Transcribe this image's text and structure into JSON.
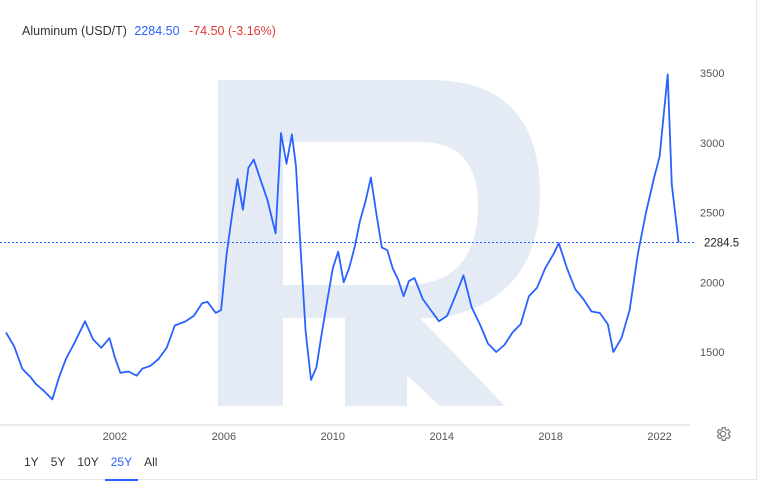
{
  "header": {
    "name": "Aluminum (USD/T)",
    "price": "2284.50",
    "change": "-74.50 (-3.16%)"
  },
  "ranges": [
    {
      "label": "1Y",
      "active": false
    },
    {
      "label": "5Y",
      "active": false
    },
    {
      "label": "10Y",
      "active": false
    },
    {
      "label": "25Y",
      "active": true
    },
    {
      "label": "All",
      "active": false
    }
  ],
  "current_label": "2284.5",
  "colors": {
    "line": "#2962ff",
    "up": "#2962ff",
    "down": "#e53935",
    "watermark": "#e5ebf5"
  },
  "icons": {
    "settings": "gear-icon",
    "watermark": "logo-r"
  },
  "chart_data": {
    "type": "line",
    "title": "",
    "xlabel": "",
    "ylabel": "",
    "xlim": [
      1998.0,
      2022.75
    ],
    "ylim": [
      1100,
      3650
    ],
    "x_ticks": [
      2002,
      2006,
      2010,
      2014,
      2018,
      2022
    ],
    "y_ticks": [
      1500,
      2000,
      2500,
      3000,
      3500
    ],
    "current_value": 2284.5,
    "grid": false,
    "series": [
      {
        "name": "",
        "x": [
          1998.0,
          1998.3,
          1998.6,
          1998.9,
          1999.1,
          1999.4,
          1999.7,
          1999.95,
          2000.2,
          2000.5,
          2000.9,
          2001.2,
          2001.5,
          2001.8,
          2002.0,
          2002.2,
          2002.5,
          2002.8,
          2003.0,
          2003.3,
          2003.6,
          2003.9,
          2004.2,
          2004.6,
          2004.9,
          2005.2,
          2005.4,
          2005.7,
          2005.9,
          2006.1,
          2006.3,
          2006.5,
          2006.7,
          2006.9,
          2007.1,
          2007.3,
          2007.6,
          2007.9,
          2008.1,
          2008.3,
          2008.5,
          2008.65,
          2008.8,
          2009.0,
          2009.2,
          2009.4,
          2009.6,
          2009.8,
          2010.0,
          2010.2,
          2010.4,
          2010.6,
          2010.8,
          2011.0,
          2011.2,
          2011.4,
          2011.6,
          2011.8,
          2012.0,
          2012.2,
          2012.4,
          2012.6,
          2012.8,
          2013.0,
          2013.3,
          2013.6,
          2013.9,
          2014.2,
          2014.5,
          2014.8,
          2015.1,
          2015.4,
          2015.7,
          2016.0,
          2016.3,
          2016.6,
          2016.9,
          2017.2,
          2017.5,
          2017.8,
          2018.1,
          2018.3,
          2018.6,
          2018.9,
          2019.2,
          2019.5,
          2019.8,
          2020.1,
          2020.3,
          2020.6,
          2020.9,
          2021.2,
          2021.5,
          2021.8,
          2022.0,
          2022.15,
          2022.3,
          2022.45,
          2022.6,
          2022.7
        ],
        "y": [
          1640,
          1540,
          1380,
          1320,
          1270,
          1220,
          1160,
          1320,
          1450,
          1560,
          1720,
          1590,
          1530,
          1600,
          1460,
          1350,
          1360,
          1330,
          1380,
          1400,
          1450,
          1530,
          1690,
          1720,
          1760,
          1850,
          1860,
          1780,
          1800,
          2200,
          2480,
          2740,
          2520,
          2820,
          2880,
          2760,
          2590,
          2350,
          3070,
          2850,
          3060,
          2830,
          2300,
          1650,
          1300,
          1390,
          1640,
          1870,
          2100,
          2220,
          2000,
          2100,
          2250,
          2440,
          2580,
          2750,
          2490,
          2250,
          2230,
          2100,
          2020,
          1900,
          2010,
          2030,
          1880,
          1800,
          1720,
          1760,
          1900,
          2050,
          1820,
          1700,
          1560,
          1500,
          1550,
          1640,
          1700,
          1900,
          1960,
          2100,
          2200,
          2280,
          2100,
          1950,
          1880,
          1790,
          1780,
          1700,
          1500,
          1600,
          1800,
          2200,
          2500,
          2750,
          2900,
          3200,
          3490,
          2700,
          2450,
          2284.5
        ]
      }
    ]
  }
}
